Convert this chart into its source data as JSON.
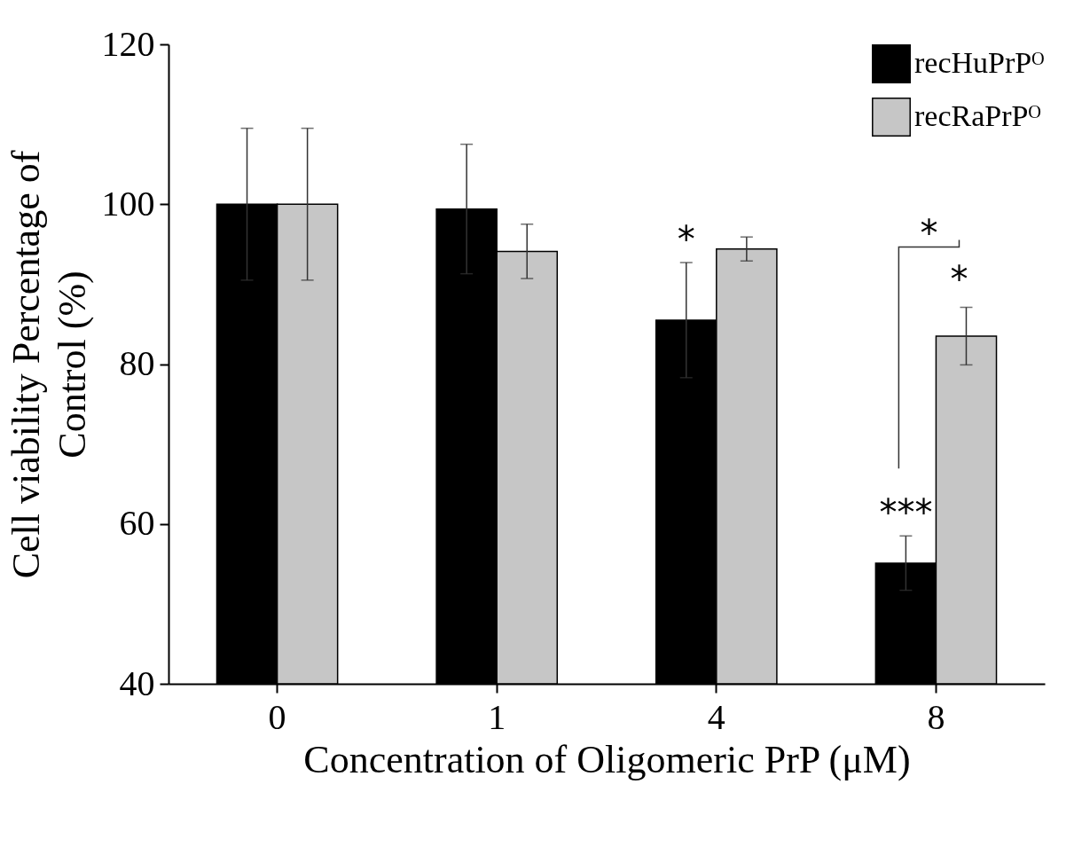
{
  "chart_data": {
    "type": "bar",
    "xlabel": "Concentration of Oligomeric PrP (μM)",
    "ylabel": "Cell viability Percentage of Control (%)",
    "categories": [
      "0",
      "1",
      "4",
      "8"
    ],
    "series": [
      {
        "name": "recHuPrPᴼ",
        "color": "#000000",
        "values": [
          100,
          99.4,
          85.5,
          55.1
        ],
        "errors": [
          9.5,
          8.1,
          7.2,
          3.4
        ]
      },
      {
        "name": "recRaPrPᴼ",
        "color": "#c6c6c6",
        "values": [
          100,
          94.1,
          94.4,
          83.5
        ],
        "errors": [
          9.5,
          3.4,
          1.5,
          3.6
        ]
      }
    ],
    "ylim": [
      40,
      120
    ],
    "yticks": [
      40,
      60,
      80,
      100,
      120
    ],
    "grid": false,
    "legend": "top right",
    "annotations": [
      {
        "text": "*",
        "x": "4",
        "y": 92.7
      },
      {
        "text": "***",
        "x": "8",
        "y": 58.5
      },
      "*",
      "*"
    ]
  }
}
